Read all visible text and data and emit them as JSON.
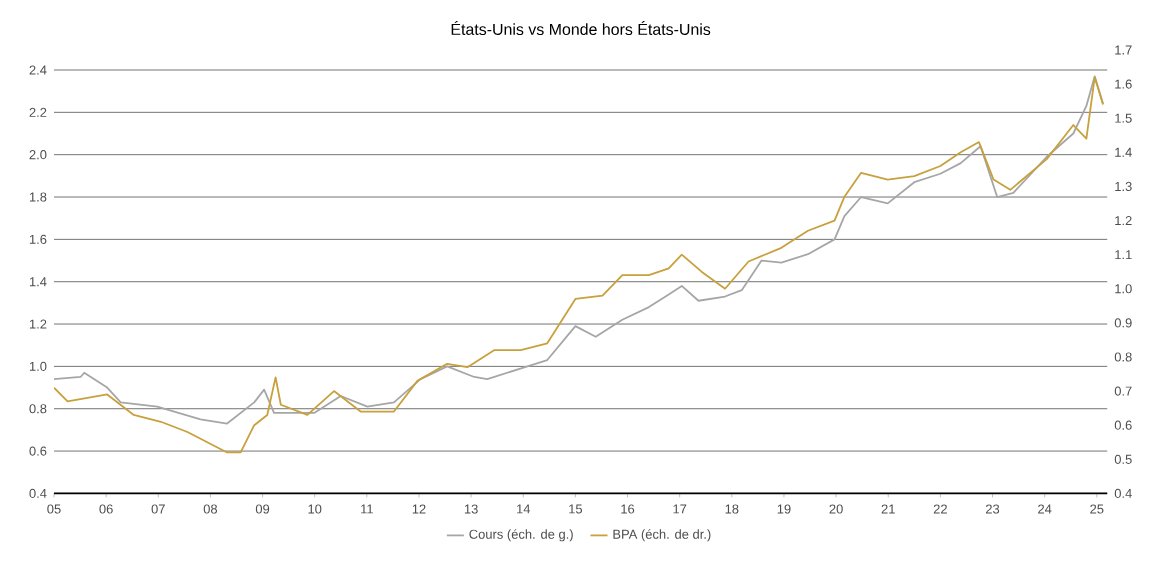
{
  "chart_data": {
    "type": "line",
    "title": "États-Unis vs Monde hors États-Unis",
    "xlim": [
      2005,
      2025.2
    ],
    "xticks": [
      {
        "value": 2005,
        "label": "05"
      },
      {
        "value": 2006,
        "label": "06"
      },
      {
        "value": 2007,
        "label": "07"
      },
      {
        "value": 2008,
        "label": "08"
      },
      {
        "value": 2009,
        "label": "09"
      },
      {
        "value": 2010,
        "label": "10"
      },
      {
        "value": 2011,
        "label": "11"
      },
      {
        "value": 2012,
        "label": "12"
      },
      {
        "value": 2013,
        "label": "13"
      },
      {
        "value": 2014,
        "label": "14"
      },
      {
        "value": 2015,
        "label": "15"
      },
      {
        "value": 2016,
        "label": "16"
      },
      {
        "value": 2017,
        "label": "17"
      },
      {
        "value": 2018,
        "label": "18"
      },
      {
        "value": 2019,
        "label": "19"
      },
      {
        "value": 2020,
        "label": "20"
      },
      {
        "value": 2021,
        "label": "21"
      },
      {
        "value": 2022,
        "label": "22"
      },
      {
        "value": 2023,
        "label": "23"
      },
      {
        "value": 2024,
        "label": "24"
      },
      {
        "value": 2025,
        "label": "25"
      }
    ],
    "ylim": [
      0.4,
      2.4
    ],
    "yticks": [
      {
        "value": 0.4,
        "label": "0.4"
      },
      {
        "value": 0.6,
        "label": "0.6"
      },
      {
        "value": 0.8,
        "label": "0.8"
      },
      {
        "value": 1.0,
        "label": "1.0"
      },
      {
        "value": 1.2,
        "label": "1.2"
      },
      {
        "value": 1.4,
        "label": "1.4"
      },
      {
        "value": 1.6,
        "label": "1.6"
      },
      {
        "value": 1.8,
        "label": "1.8"
      },
      {
        "value": 2.0,
        "label": "2.0"
      },
      {
        "value": 2.2,
        "label": "2.2"
      },
      {
        "value": 2.4,
        "label": "2.4"
      }
    ],
    "y2lim": [
      0.4,
      1.7
    ],
    "y2ticks": [
      {
        "value": 0.4,
        "label": "0.4"
      },
      {
        "value": 0.5,
        "label": "0.5"
      },
      {
        "value": 0.6,
        "label": "0.6"
      },
      {
        "value": 0.7,
        "label": "0.7"
      },
      {
        "value": 0.8,
        "label": "0.8"
      },
      {
        "value": 0.9,
        "label": "0.9"
      },
      {
        "value": 1.0,
        "label": "1.0"
      },
      {
        "value": 1.1,
        "label": "1.1"
      },
      {
        "value": 1.2,
        "label": "1.2"
      },
      {
        "value": 1.3,
        "label": "1.3"
      },
      {
        "value": 1.4,
        "label": "1.4"
      },
      {
        "value": 1.5,
        "label": "1.5"
      },
      {
        "value": 1.6,
        "label": "1.6"
      },
      {
        "value": 1.7,
        "label": "1.7"
      }
    ],
    "grid": "y",
    "legend": "bottom",
    "marker": "none",
    "line_style": "solid",
    "series": [
      {
        "name": "Cours (éch. de g.)",
        "color": "#a6a6a6",
        "x": [
          2005,
          2005.51,
          2005.58,
          2006.02,
          2006.28,
          2006.98,
          2007.81,
          2008.32,
          2008.84,
          2009.03,
          2009.22,
          2009.99,
          2010.5,
          2011.01,
          2011.52,
          2012.03,
          2012.54,
          2013.06,
          2013.31,
          2014.08,
          2014.46,
          2015.0,
          2015.39,
          2015.9,
          2016.41,
          2016.73,
          2017.04,
          2017.36,
          2017.87,
          2018.19,
          2018.57,
          2018.95,
          2019.46,
          2019.97,
          2020.16,
          2020.48,
          2020.99,
          2021.5,
          2022.0,
          2022.39,
          2022.77,
          2023.09,
          2023.4,
          2024.04,
          2024.55,
          2024.8,
          2024.96,
          2025.12
        ],
        "values": [
          0.94,
          0.95,
          0.97,
          0.9,
          0.83,
          0.81,
          0.75,
          0.73,
          0.83,
          0.89,
          0.78,
          0.78,
          0.86,
          0.81,
          0.83,
          0.94,
          1.0,
          0.95,
          0.94,
          1.0,
          1.03,
          1.19,
          1.14,
          1.22,
          1.28,
          1.33,
          1.38,
          1.31,
          1.33,
          1.36,
          1.5,
          1.49,
          1.53,
          1.6,
          1.71,
          1.8,
          1.77,
          1.87,
          1.91,
          1.96,
          2.04,
          1.8,
          1.82,
          1.99,
          2.1,
          2.23,
          2.37,
          2.24
        ]
      },
      {
        "name": "BPA (éch. de dr.)",
        "color": "#c8a03c",
        "axis": "y2",
        "x": [
          2005,
          2005.26,
          2006.02,
          2006.53,
          2007.05,
          2007.56,
          2007.94,
          2008.32,
          2008.58,
          2008.84,
          2009.09,
          2009.25,
          2009.35,
          2009.86,
          2010.37,
          2010.88,
          2011.52,
          2011.97,
          2012.54,
          2012.93,
          2013.44,
          2013.95,
          2014.46,
          2015.0,
          2015.52,
          2015.9,
          2016.41,
          2016.79,
          2017.04,
          2017.42,
          2017.87,
          2018.32,
          2018.95,
          2019.46,
          2019.97,
          2020.16,
          2020.48,
          2020.99,
          2021.5,
          2022.0,
          2022.39,
          2022.74,
          2023.02,
          2023.34,
          2024.04,
          2024.55,
          2024.8,
          2024.96,
          2025.12
        ],
        "values": [
          0.71,
          0.67,
          0.69,
          0.63,
          0.61,
          0.58,
          0.55,
          0.52,
          0.52,
          0.6,
          0.63,
          0.74,
          0.66,
          0.63,
          0.7,
          0.64,
          0.64,
          0.73,
          0.78,
          0.77,
          0.82,
          0.82,
          0.84,
          0.97,
          0.98,
          1.04,
          1.04,
          1.06,
          1.1,
          1.05,
          1.0,
          1.08,
          1.12,
          1.17,
          1.2,
          1.27,
          1.34,
          1.32,
          1.33,
          1.36,
          1.4,
          1.43,
          1.32,
          1.29,
          1.38,
          1.48,
          1.44,
          1.62,
          1.54
        ]
      }
    ]
  }
}
